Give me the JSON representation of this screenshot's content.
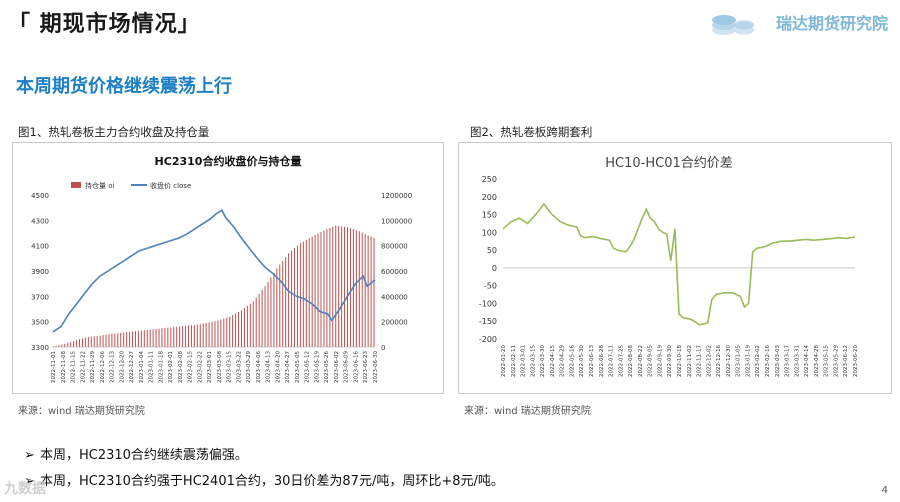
{
  "header": {
    "title": "「 期现市场情况」",
    "logo_text": "瑞达期货研究院"
  },
  "subtitle": "本周期货价格继续震荡上行",
  "figures": [
    {
      "caption": "图1、热轧卷板主力合约收盘及持仓量",
      "source": "来源：wind   瑞达期货研究院"
    },
    {
      "caption": "图2、热轧卷板跨期套利",
      "source": "来源：wind   瑞达期货研究院"
    }
  ],
  "bullets": [
    "本周，HC2310合约继续震荡偏强。",
    "本周，HC2310合约强于HC2401合约，30日价差为87元/吨，周环比+8元/吨。"
  ],
  "page_number": "4",
  "watermark": "九数据",
  "chart_data": [
    {
      "type": "bar",
      "title": "HC2310合约收盘价与持仓量",
      "legend": [
        "持仓量 oi",
        "收盘价 close"
      ],
      "legend_position": "top",
      "ylim_left": [
        3300,
        4500
      ],
      "yticks_left": [
        3300,
        3500,
        3700,
        3900,
        4100,
        4300,
        4500
      ],
      "ylim_right": [
        0,
        1200000
      ],
      "yticks_right": [
        0,
        200000,
        400000,
        600000,
        800000,
        1000000,
        1200000
      ],
      "x_labels": [
        "2022-11-01",
        "2022-11-08",
        "2022-11-15",
        "2022-11-22",
        "2022-11-29",
        "2022-12-06",
        "2022-12-13",
        "2022-12-20",
        "2022-12-27",
        "2023-01-04",
        "2023-01-11",
        "2023-01-18",
        "2023-02-01",
        "2023-02-08",
        "2023-02-15",
        "2023-02-22",
        "2023-03-01",
        "2023-03-08",
        "2023-03-15",
        "2023-03-22",
        "2023-03-29",
        "2023-04-06",
        "2023-04-13",
        "2023-04-20",
        "2023-04-27",
        "2023-05-05",
        "2023-05-12",
        "2023-05-19",
        "2023-05-26",
        "2023-06-02",
        "2023-06-09",
        "2023-06-16",
        "2023-06-23",
        "2023-06-30"
      ],
      "series": [
        {
          "name": "持仓量 oi",
          "kind": "bar",
          "axis": "right",
          "color": "#c0504d",
          "points": [
            [
              0,
              5000
            ],
            [
              6,
              25000
            ],
            [
              12,
              55000
            ],
            [
              18,
              80000
            ],
            [
              24,
              90000
            ],
            [
              30,
              105000
            ],
            [
              36,
              115000
            ],
            [
              42,
              125000
            ],
            [
              48,
              135000
            ],
            [
              54,
              145000
            ],
            [
              60,
              155000
            ],
            [
              66,
              165000
            ],
            [
              72,
              175000
            ],
            [
              78,
              190000
            ],
            [
              84,
              210000
            ],
            [
              90,
              240000
            ],
            [
              96,
              290000
            ],
            [
              102,
              360000
            ],
            [
              108,
              480000
            ],
            [
              114,
              620000
            ],
            [
              120,
              740000
            ],
            [
              126,
              820000
            ],
            [
              132,
              870000
            ],
            [
              138,
              920000
            ],
            [
              144,
              960000
            ],
            [
              150,
              945000
            ],
            [
              156,
              915000
            ],
            [
              160,
              885000
            ],
            [
              164,
              860000
            ]
          ]
        },
        {
          "name": "收盘价 close",
          "kind": "line",
          "axis": "left",
          "color": "#4f81bd",
          "points": [
            [
              0,
              3420
            ],
            [
              4,
              3460
            ],
            [
              8,
              3560
            ],
            [
              12,
              3640
            ],
            [
              16,
              3720
            ],
            [
              20,
              3800
            ],
            [
              24,
              3860
            ],
            [
              28,
              3900
            ],
            [
              32,
              3940
            ],
            [
              36,
              3980
            ],
            [
              40,
              4020
            ],
            [
              44,
              4060
            ],
            [
              48,
              4080
            ],
            [
              52,
              4100
            ],
            [
              56,
              4120
            ],
            [
              60,
              4140
            ],
            [
              64,
              4160
            ],
            [
              68,
              4190
            ],
            [
              72,
              4230
            ],
            [
              76,
              4270
            ],
            [
              80,
              4310
            ],
            [
              83,
              4350
            ],
            [
              86,
              4380
            ],
            [
              88,
              4320
            ],
            [
              92,
              4250
            ],
            [
              96,
              4160
            ],
            [
              100,
              4080
            ],
            [
              104,
              4000
            ],
            [
              108,
              3930
            ],
            [
              112,
              3880
            ],
            [
              116,
              3820
            ],
            [
              120,
              3740
            ],
            [
              124,
              3700
            ],
            [
              128,
              3680
            ],
            [
              132,
              3640
            ],
            [
              136,
              3580
            ],
            [
              140,
              3560
            ],
            [
              142,
              3510
            ],
            [
              146,
              3600
            ],
            [
              150,
              3700
            ],
            [
              154,
              3800
            ],
            [
              158,
              3860
            ],
            [
              160,
              3780
            ],
            [
              164,
              3830
            ]
          ]
        }
      ]
    },
    {
      "type": "line",
      "title": "HC10-HC01合约价差",
      "ylim": [
        -200,
        250
      ],
      "yticks": [
        250,
        200,
        150,
        100,
        50,
        0,
        -50,
        -100,
        -150,
        -200
      ],
      "x_labels": [
        "2022-01-20",
        "2022-02-11",
        "2022-03-01",
        "2022-03-15",
        "2022-03-30",
        "2022-04-15",
        "2022-04-29",
        "2022-05-16",
        "2022-05-30",
        "2022-06-13",
        "2022-06-28",
        "2022-07-11",
        "2022-07-25",
        "2022-08-08",
        "2022-08-22",
        "2022-09-05",
        "2022-09-19",
        "2022-09-30",
        "2022-10-18",
        "2022-11-02",
        "2022-11-17",
        "2022-12-02",
        "2022-12-16",
        "2022-12-30",
        "2023-01-05",
        "2023-01-19",
        "2023-02-02",
        "2023-02-16",
        "2023-03-03",
        "2023-03-17",
        "2023-03-31",
        "2023-04-14",
        "2023-04-28",
        "2023-05-15",
        "2023-05-29",
        "2023-06-12",
        "2023-06-20"
      ],
      "series": [
        {
          "name": "HC10-HC01",
          "color": "#9bbb59",
          "points": [
            [
              0,
              110
            ],
            [
              2,
              130
            ],
            [
              4,
              140
            ],
            [
              6,
              125
            ],
            [
              8,
              150
            ],
            [
              10,
              180
            ],
            [
              12,
              150
            ],
            [
              14,
              130
            ],
            [
              16,
              120
            ],
            [
              18,
              115
            ],
            [
              19,
              90
            ],
            [
              20,
              85
            ],
            [
              22,
              88
            ],
            [
              24,
              82
            ],
            [
              26,
              78
            ],
            [
              27,
              55
            ],
            [
              28,
              50
            ],
            [
              30,
              45
            ],
            [
              31,
              60
            ],
            [
              32,
              80
            ],
            [
              33,
              110
            ],
            [
              34,
              140
            ],
            [
              35,
              165
            ],
            [
              36,
              140
            ],
            [
              37,
              130
            ],
            [
              38,
              110
            ],
            [
              39,
              100
            ],
            [
              40,
              95
            ],
            [
              41,
              20
            ],
            [
              42,
              110
            ],
            [
              43,
              -130
            ],
            [
              44,
              -140
            ],
            [
              46,
              -145
            ],
            [
              48,
              -160
            ],
            [
              50,
              -155
            ],
            [
              51,
              -90
            ],
            [
              52,
              -75
            ],
            [
              54,
              -70
            ],
            [
              56,
              -70
            ],
            [
              58,
              -80
            ],
            [
              59,
              -110
            ],
            [
              60,
              -100
            ],
            [
              61,
              45
            ],
            [
              62,
              55
            ],
            [
              64,
              60
            ],
            [
              66,
              70
            ],
            [
              68,
              75
            ],
            [
              70,
              75
            ],
            [
              72,
              78
            ],
            [
              74,
              80
            ],
            [
              76,
              78
            ],
            [
              78,
              80
            ],
            [
              80,
              82
            ],
            [
              82,
              85
            ],
            [
              84,
              83
            ],
            [
              86,
              87
            ]
          ]
        }
      ]
    }
  ]
}
